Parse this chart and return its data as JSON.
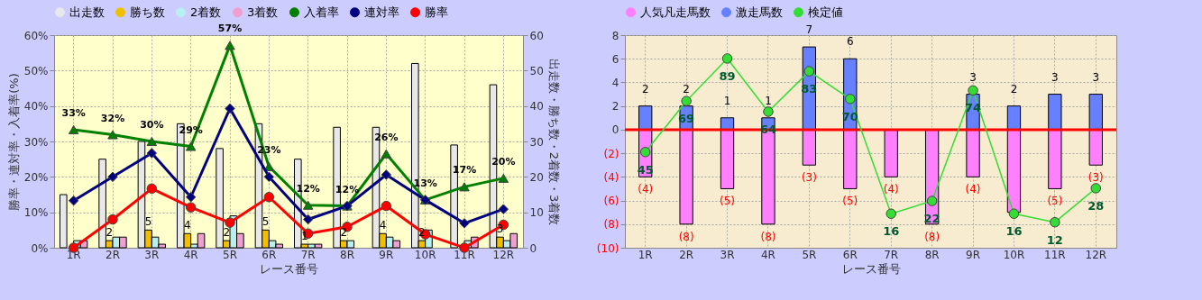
{
  "chart_data": [
    {
      "type": "bar",
      "xlabel": "レース番号",
      "ylabel": "勝率・連対率・入着率(%)",
      "y2label": "出走数・勝ち数・2着数・3着数",
      "categories": [
        "1R",
        "2R",
        "3R",
        "4R",
        "5R",
        "6R",
        "7R",
        "8R",
        "9R",
        "10R",
        "11R",
        "12R"
      ],
      "series": [
        {
          "name": "出走数",
          "color": "#e8e8e8",
          "axis": "y2",
          "values": [
            15,
            25,
            30,
            35,
            28,
            35,
            25,
            34,
            34,
            52,
            29,
            46
          ]
        },
        {
          "name": "勝ち数",
          "color": "#f0c000",
          "axis": "y2",
          "values": [
            0,
            2,
            5,
            4,
            2,
            5,
            1,
            2,
            4,
            2,
            0,
            3
          ],
          "value_labels": [
            null,
            "2",
            "5",
            "4",
            "2",
            "5",
            "1",
            "2",
            "4",
            "2",
            null,
            "3"
          ]
        },
        {
          "name": "2着数",
          "color": "#b8f0f0",
          "axis": "y2",
          "values": [
            2,
            3,
            3,
            1,
            9,
            2,
            1,
            2,
            3,
            5,
            2,
            2
          ]
        },
        {
          "name": "3着数",
          "color": "#f0a0d0",
          "axis": "y2",
          "values": [
            2,
            3,
            1,
            4,
            4,
            1,
            1,
            0,
            2,
            0,
            3,
            4
          ]
        },
        {
          "name": "入着率",
          "type": "line",
          "marker": "triangle",
          "color": "#008000",
          "values": [
            33.3,
            31.9,
            30,
            28.6,
            57.1,
            22.9,
            12,
            11.8,
            26.5,
            13.5,
            17.2,
            19.6
          ],
          "value_labels": [
            "33%",
            "32%",
            "30%",
            "29%",
            "57%",
            "23%",
            "12%",
            "12%",
            "26%",
            "13%",
            "17%",
            "20%"
          ]
        },
        {
          "name": "連対率",
          "type": "line",
          "marker": "diamond",
          "color": "#000080",
          "values": [
            13.3,
            20,
            26.7,
            14.3,
            39.3,
            20,
            8,
            11.8,
            20.6,
            13.5,
            6.9,
            10.9
          ]
        },
        {
          "name": "勝率",
          "type": "line",
          "marker": "circle",
          "color": "#ff0000",
          "values": [
            0,
            8,
            16.7,
            11.4,
            7.1,
            14.3,
            4,
            5.9,
            11.8,
            3.8,
            0,
            6.5
          ]
        }
      ],
      "ylim": [
        0,
        60
      ],
      "yticks": [
        {
          "value": 0,
          "label": "0%"
        },
        {
          "value": 10,
          "label": "10%"
        },
        {
          "value": 20,
          "label": "20%"
        },
        {
          "value": 30,
          "label": "30%"
        },
        {
          "value": 40,
          "label": "40%"
        },
        {
          "value": 50,
          "label": "50%"
        },
        {
          "value": 60,
          "label": "60%"
        }
      ],
      "y2lim": [
        0,
        60
      ],
      "y2ticks": [
        0,
        10,
        20,
        30,
        40,
        50,
        60
      ],
      "grid": true,
      "legend": "top"
    },
    {
      "type": "bar",
      "xlabel": "レース番号",
      "stacked": true,
      "categories": [
        "1R",
        "2R",
        "3R",
        "4R",
        "5R",
        "6R",
        "7R",
        "8R",
        "9R",
        "10R",
        "11R",
        "12R"
      ],
      "series": [
        {
          "name": "人気凡走馬数",
          "color": "#ff80ff",
          "values": [
            -4,
            -8,
            -5,
            -8,
            -3,
            -5,
            -4,
            -8,
            -4,
            -7,
            -5,
            -3
          ],
          "value_labels": [
            "(4)",
            "(8)",
            "(5)",
            "(8)",
            "(3)",
            "(5)",
            "(4)",
            "(8)",
            "(4)",
            null,
            "(5)",
            "(3)"
          ]
        },
        {
          "name": "激走馬数",
          "color": "#6680ff",
          "values": [
            2,
            2,
            1,
            1,
            7,
            6,
            0,
            0,
            3,
            2,
            3,
            3
          ],
          "value_labels": [
            "2",
            "2",
            "1",
            "1",
            "7",
            "6",
            null,
            null,
            "3",
            "2",
            "3",
            "3"
          ]
        },
        {
          "name": "検定値",
          "type": "line",
          "marker": "circle",
          "color": "#33dd33",
          "axis": "y2",
          "values": [
            45,
            69,
            89,
            64,
            83,
            70,
            16,
            22,
            74,
            16,
            12,
            28
          ],
          "data_labels": true
        }
      ],
      "y2lim": [
        0,
        100
      ],
      "ylim": [
        -10,
        8
      ],
      "yticks": [
        8,
        6,
        4,
        2,
        0,
        {
          "value": -2,
          "label": "(2)"
        },
        {
          "value": -4,
          "label": "(4)"
        },
        {
          "value": -6,
          "label": "(6)"
        },
        {
          "value": -8,
          "label": "(8)"
        },
        {
          "value": -10,
          "label": "(10)"
        }
      ],
      "ref_lines": [
        {
          "axis": "y",
          "value": 0,
          "color": "#ff0000"
        }
      ],
      "grid": true,
      "legend": "top"
    }
  ]
}
